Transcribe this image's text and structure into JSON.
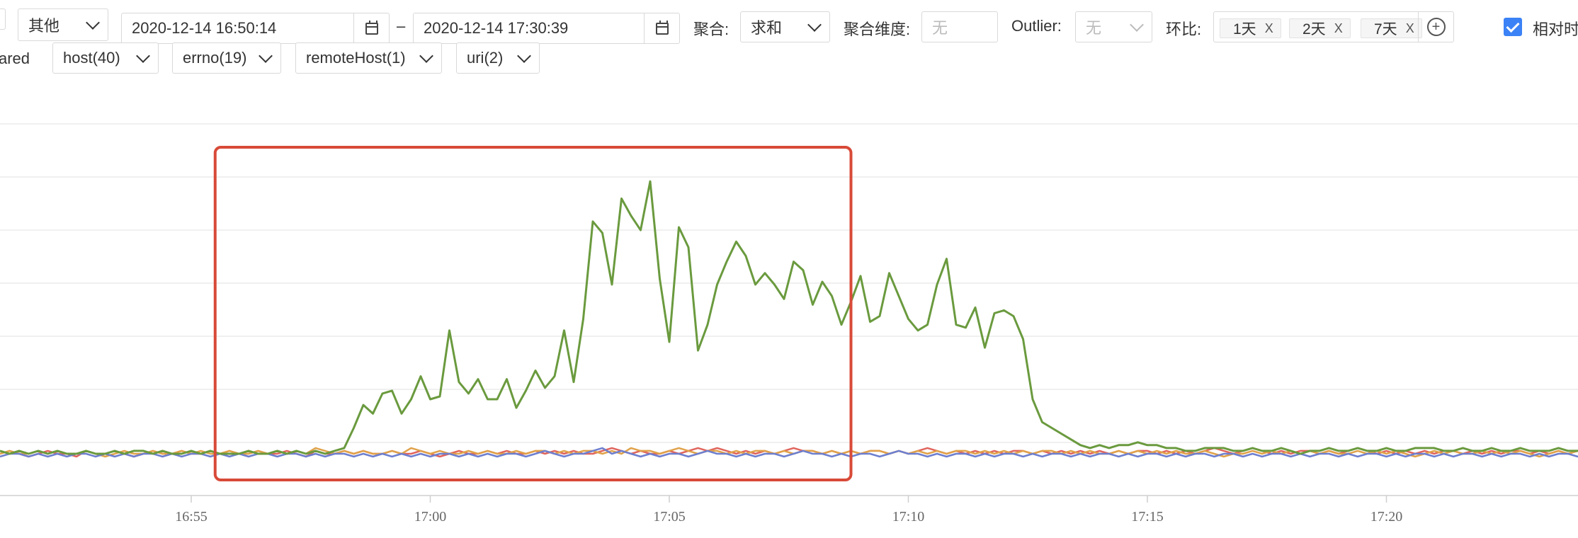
{
  "filters": {
    "category_select": "其他",
    "start_time": "2020-12-14 16:50:14",
    "range_sep": "–",
    "end_time": "2020-12-14 17:30:39",
    "aggregate_label": "聚合:",
    "aggregate_value": "求和",
    "aggregate_dim_label": "聚合维度:",
    "aggregate_dim_placeholder": "无",
    "outlier_label": "Outlier:",
    "outlier_value": "无",
    "compare_label": "环比:",
    "compare_tags": [
      {
        "label": "1天",
        "remove": "X"
      },
      {
        "label": "2天",
        "remove": "X"
      },
      {
        "label": "7天",
        "remove": "X"
      }
    ],
    "add_compare": "+",
    "relative_time_label": "相对时"
  },
  "dimensions": {
    "partial_label": "ared",
    "items": [
      {
        "label": "host(40)"
      },
      {
        "label": "errno(19)"
      },
      {
        "label": "remoteHost(1)"
      },
      {
        "label": "uri(2)"
      }
    ]
  },
  "colors": {
    "green": "#6a9a3e",
    "red": "#e0645c",
    "orange": "#e0a24a",
    "blue": "#6d7fcf",
    "highlight": "#d84a38",
    "grid": "#ececec"
  },
  "chart_data": {
    "type": "line",
    "x_start": "16:51",
    "x_end": "17:24",
    "step_minutes": 0.2,
    "x_tick_labels": [
      "16:55",
      "17:00",
      "17:05",
      "17:10",
      "17:15",
      "17:20"
    ],
    "y_gridlines": 7,
    "ylim": [
      0,
      100
    ],
    "highlight_range": [
      "16:55.5",
      "17:08.8"
    ],
    "series": [
      {
        "color": "green",
        "values": [
          2,
          1,
          2,
          1,
          2,
          1,
          2,
          1,
          1,
          2,
          1,
          1,
          2,
          1,
          2,
          2,
          1,
          2,
          1,
          1,
          2,
          1,
          2,
          1,
          1,
          1,
          2,
          1,
          1,
          2,
          1,
          2,
          1,
          2,
          1,
          2,
          3,
          10,
          18,
          15,
          22,
          23,
          15,
          20,
          28,
          20,
          21,
          44,
          26,
          22,
          27,
          20,
          20,
          27,
          17,
          23,
          30,
          24,
          28,
          44,
          26,
          48,
          82,
          78,
          60,
          90,
          84,
          79,
          96,
          62,
          40,
          80,
          73,
          37,
          46,
          60,
          68,
          75,
          70,
          60,
          64,
          60,
          55,
          68,
          65,
          53,
          61,
          56,
          46,
          54,
          63,
          47,
          49,
          64,
          56,
          48,
          44,
          46,
          60,
          69,
          46,
          45,
          52,
          38,
          50,
          51,
          49,
          41,
          20,
          12,
          10,
          8,
          6,
          4,
          3,
          4,
          3,
          4,
          4,
          5,
          4,
          4,
          3,
          3,
          2,
          2,
          3,
          3,
          3,
          2,
          2,
          3,
          2,
          2,
          3,
          2,
          1,
          2,
          2,
          3,
          2,
          2,
          3,
          2,
          2,
          3,
          2,
          2,
          3,
          3,
          3,
          2,
          2,
          3,
          2,
          2,
          3,
          2,
          2,
          3,
          2,
          2,
          2,
          3,
          2,
          2,
          3,
          2,
          4,
          2,
          2,
          3,
          2,
          2,
          3,
          2,
          2,
          3,
          2,
          2,
          3,
          2,
          2,
          3,
          3,
          2,
          3,
          2,
          3,
          2,
          2
        ]
      },
      {
        "color": "red",
        "values": [
          1,
          2,
          1,
          0,
          1,
          2,
          1,
          1,
          0,
          2,
          1,
          1,
          2,
          1,
          0,
          1,
          2,
          1,
          1,
          2,
          1,
          1,
          2,
          1,
          2,
          1,
          1,
          2,
          1,
          1,
          2,
          1,
          0,
          2,
          1,
          1,
          2,
          1,
          2,
          1,
          1,
          2,
          1,
          1,
          2,
          1,
          0,
          1,
          2,
          1,
          1,
          2,
          1,
          2,
          1,
          1,
          2,
          1,
          2,
          1,
          2,
          1,
          1,
          2,
          3,
          2,
          1,
          2,
          1,
          1,
          2,
          1,
          2,
          3,
          2,
          3,
          2,
          1,
          2,
          1,
          2,
          1,
          2,
          3,
          2,
          2,
          1,
          2,
          1,
          2,
          1,
          2,
          2,
          1,
          2,
          1,
          2,
          3,
          2,
          1,
          2,
          1,
          2,
          1,
          2,
          1,
          2,
          2,
          1,
          2,
          1,
          2,
          1,
          2,
          1,
          2,
          1,
          2,
          1,
          2,
          2,
          1,
          2,
          1,
          2,
          1,
          2,
          3,
          2,
          1,
          2,
          3,
          2,
          1,
          2,
          1,
          2,
          2,
          1,
          2,
          1,
          2,
          3,
          2,
          1,
          2,
          1,
          2,
          1,
          2,
          1,
          2,
          2,
          1,
          2,
          1,
          2,
          1,
          2,
          2,
          1,
          2,
          1,
          2,
          1,
          2,
          1,
          2,
          2,
          1,
          2,
          3,
          2,
          1,
          2,
          1,
          2,
          1,
          2,
          2,
          1,
          2,
          1,
          2,
          1,
          2,
          1,
          2,
          2,
          1,
          2,
          1,
          2,
          1,
          2
        ]
      },
      {
        "color": "orange",
        "values": [
          1,
          2,
          1,
          1,
          2,
          1,
          2,
          1,
          1,
          2,
          1,
          0,
          1,
          2,
          1,
          1,
          2,
          1,
          1,
          2,
          1,
          2,
          1,
          1,
          2,
          1,
          1,
          2,
          1,
          2,
          1,
          2,
          1,
          3,
          2,
          1,
          2,
          1,
          2,
          1,
          1,
          2,
          1,
          3,
          2,
          1,
          2,
          1,
          1,
          2,
          1,
          2,
          1,
          1,
          2,
          1,
          2,
          2,
          1,
          2,
          1,
          2,
          2,
          1,
          2,
          1,
          3,
          2,
          2,
          1,
          2,
          3,
          2,
          1,
          2,
          2,
          1,
          2,
          1,
          2,
          2,
          1,
          2,
          1,
          2,
          2,
          1,
          2,
          1,
          2,
          1,
          2,
          2,
          1,
          2,
          1,
          2,
          1,
          2,
          1,
          2,
          2,
          1,
          2,
          1,
          2,
          1,
          2,
          1,
          2,
          2,
          1,
          2,
          1,
          2,
          1,
          1,
          2,
          1,
          2,
          1,
          2,
          1,
          2,
          1,
          1,
          2,
          1,
          0,
          1,
          1,
          2,
          1,
          2,
          1,
          2,
          1,
          2,
          1,
          2,
          1,
          1,
          2,
          1,
          2,
          1,
          2,
          1,
          0,
          1,
          2,
          1,
          2,
          1,
          1,
          2,
          1,
          2,
          1,
          2,
          1,
          0,
          1,
          2,
          1,
          2,
          1,
          2,
          1,
          1,
          2,
          1,
          2,
          0,
          1,
          2,
          1,
          2,
          1,
          2,
          1,
          1,
          2,
          1,
          2,
          0,
          1,
          2,
          1,
          2,
          1,
          2,
          1,
          2,
          1
        ]
      },
      {
        "color": "blue",
        "values": [
          0,
          1,
          1,
          0,
          1,
          0,
          1,
          0,
          1,
          1,
          0,
          1,
          0,
          1,
          0,
          1,
          1,
          0,
          1,
          0,
          1,
          1,
          0,
          1,
          0,
          1,
          0,
          1,
          1,
          0,
          1,
          1,
          0,
          1,
          0,
          1,
          1,
          0,
          1,
          0,
          1,
          0,
          1,
          0,
          1,
          0,
          1,
          1,
          0,
          1,
          0,
          1,
          0,
          1,
          1,
          0,
          1,
          2,
          1,
          0,
          1,
          1,
          2,
          3,
          1,
          2,
          1,
          0,
          1,
          0,
          1,
          1,
          0,
          1,
          2,
          1,
          1,
          0,
          1,
          0,
          1,
          1,
          0,
          1,
          2,
          1,
          1,
          0,
          1,
          0,
          1,
          1,
          0,
          1,
          2,
          1,
          1,
          0,
          1,
          0,
          1,
          1,
          0,
          1,
          0,
          1,
          1,
          0,
          1,
          0,
          1,
          1,
          0,
          1,
          0,
          1,
          1,
          0,
          1,
          0,
          1,
          1,
          0,
          1,
          0,
          1,
          1,
          0,
          1,
          1,
          0,
          1,
          0,
          1,
          1,
          0,
          1,
          0,
          1,
          1,
          0,
          1,
          0,
          1,
          1,
          0,
          1,
          0,
          1,
          1,
          0,
          1,
          0,
          1,
          1,
          0,
          1,
          0,
          1,
          1,
          0,
          1,
          0,
          1,
          1,
          0,
          1,
          0,
          1,
          1,
          0,
          1,
          0,
          1,
          1,
          0,
          1,
          0,
          1,
          1,
          0,
          1,
          0,
          1,
          1,
          0,
          1,
          0,
          1,
          1,
          0,
          1,
          3,
          1,
          2
        ]
      }
    ]
  }
}
